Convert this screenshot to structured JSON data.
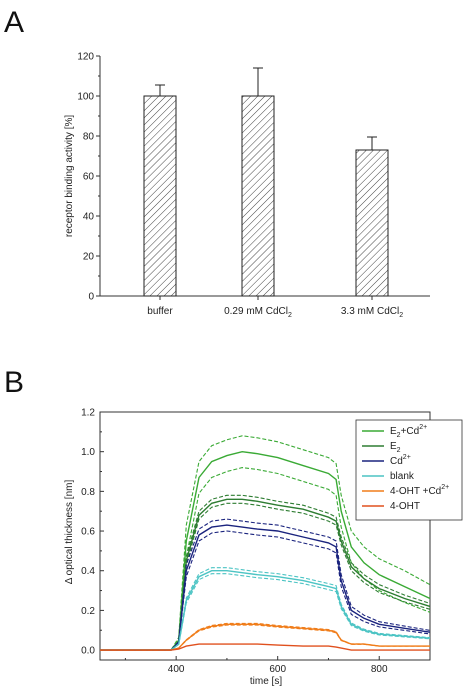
{
  "panel_a": {
    "label": "A",
    "ylabel": "receptor binding activity [%]",
    "yticks": [
      "0",
      "20",
      "40",
      "60",
      "80",
      "100",
      "120"
    ],
    "categories": [
      {
        "main": "buffer",
        "sub": ""
      },
      {
        "main": "0.29 mM CdCl",
        "sub": "2"
      },
      {
        "main": "3.3 mM CdCl",
        "sub": "2"
      }
    ]
  },
  "panel_b": {
    "label": "B",
    "xlabel": "time [s]",
    "ylabel": "Δ optical thickness [nm]",
    "xticks": [
      "400",
      "600",
      "800"
    ],
    "yticks": [
      "0.0",
      "0.2",
      "0.4",
      "0.6",
      "0.8",
      "1.0",
      "1.2"
    ],
    "legend": [
      {
        "main": "E",
        "sub": "2",
        "rest": "+Cd",
        "sup": "2+",
        "color": "#3aaa35"
      },
      {
        "main": "E",
        "sub": "2",
        "rest": "",
        "sup": "",
        "color": "#2e7d32"
      },
      {
        "main": "Cd",
        "sub": "",
        "rest": "",
        "sup": "2+",
        "color": "#1a237e"
      },
      {
        "main": "blank",
        "sub": "",
        "rest": "",
        "sup": "",
        "color": "#4cc4c4"
      },
      {
        "main": "4-OHT +Cd",
        "sub": "",
        "rest": "",
        "sup": "2+",
        "color": "#f07d1a"
      },
      {
        "main": "4-OHT",
        "sub": "",
        "rest": "",
        "sup": "",
        "color": "#e0501e"
      }
    ]
  },
  "chart_data": [
    {
      "type": "bar",
      "categories": [
        "buffer",
        "0.29 mM CdCl2",
        "3.3 mM CdCl2"
      ],
      "values": [
        100,
        100,
        73
      ],
      "error_plus": [
        5.5,
        14,
        6.5
      ],
      "ylabel": "receptor binding activity [%]",
      "ylim": [
        0,
        120
      ],
      "bar_pattern": "diagonal-hatch",
      "grid": false
    },
    {
      "type": "line",
      "xlabel": "time [s]",
      "ylabel": "Δ optical thickness [nm]",
      "xlim": [
        250,
        900
      ],
      "ylim": [
        -0.05,
        1.2
      ],
      "legend_position": "top-right",
      "grid": false,
      "series": [
        {
          "name": "E2+Cd2+",
          "color": "#3aaa35",
          "x": [
            250,
            390,
            405,
            420,
            445,
            470,
            500,
            530,
            560,
            600,
            650,
            700,
            715,
            725,
            745,
            770,
            800,
            850,
            900
          ],
          "y": [
            0.0,
            0.0,
            0.05,
            0.55,
            0.87,
            0.95,
            0.98,
            1.0,
            0.99,
            0.97,
            0.93,
            0.89,
            0.86,
            0.7,
            0.52,
            0.44,
            0.38,
            0.32,
            0.26
          ],
          "band": 0.08
        },
        {
          "name": "E2",
          "color": "#2e7d32",
          "x": [
            250,
            390,
            405,
            420,
            445,
            470,
            500,
            530,
            560,
            600,
            650,
            700,
            715,
            725,
            745,
            770,
            800,
            850,
            900
          ],
          "y": [
            0.0,
            0.0,
            0.04,
            0.45,
            0.68,
            0.74,
            0.76,
            0.76,
            0.75,
            0.73,
            0.71,
            0.67,
            0.65,
            0.55,
            0.42,
            0.36,
            0.31,
            0.26,
            0.22
          ],
          "band": 0.02
        },
        {
          "name": "Cd2+",
          "color": "#1a237e",
          "x": [
            250,
            390,
            405,
            420,
            445,
            470,
            500,
            530,
            560,
            600,
            650,
            700,
            715,
            725,
            745,
            770,
            800,
            850,
            900
          ],
          "y": [
            0.0,
            0.0,
            0.04,
            0.4,
            0.58,
            0.62,
            0.63,
            0.62,
            0.61,
            0.6,
            0.57,
            0.54,
            0.52,
            0.35,
            0.2,
            0.16,
            0.13,
            0.11,
            0.09
          ],
          "band": 0.03
        },
        {
          "name": "blank",
          "color": "#4cc4c4",
          "x": [
            250,
            390,
            405,
            420,
            445,
            470,
            500,
            530,
            560,
            600,
            650,
            700,
            715,
            725,
            745,
            770,
            800,
            850,
            900
          ],
          "y": [
            0.0,
            0.0,
            0.03,
            0.25,
            0.37,
            0.4,
            0.4,
            0.39,
            0.38,
            0.37,
            0.35,
            0.32,
            0.31,
            0.22,
            0.13,
            0.1,
            0.08,
            0.07,
            0.06
          ],
          "band": 0.015
        },
        {
          "name": "4-OHT +Cd2+",
          "color": "#f07d1a",
          "x": [
            250,
            390,
            405,
            420,
            445,
            470,
            500,
            530,
            560,
            600,
            650,
            700,
            715,
            725,
            745,
            770,
            800,
            850,
            900
          ],
          "y": [
            0.0,
            0.0,
            0.01,
            0.05,
            0.1,
            0.12,
            0.13,
            0.13,
            0.13,
            0.12,
            0.11,
            0.1,
            0.09,
            0.05,
            0.03,
            0.03,
            0.02,
            0.02,
            0.02
          ],
          "band": 0.01
        },
        {
          "name": "4-OHT",
          "color": "#e0501e",
          "x": [
            250,
            390,
            405,
            420,
            445,
            470,
            500,
            530,
            560,
            600,
            650,
            700,
            715,
            725,
            745,
            770,
            800,
            850,
            900
          ],
          "y": [
            0.0,
            0.0,
            0.005,
            0.02,
            0.03,
            0.03,
            0.03,
            0.03,
            0.03,
            0.025,
            0.02,
            0.02,
            0.015,
            0.01,
            0.0,
            0.0,
            0.0,
            0.0,
            0.0
          ],
          "band": 0.0
        }
      ]
    }
  ]
}
